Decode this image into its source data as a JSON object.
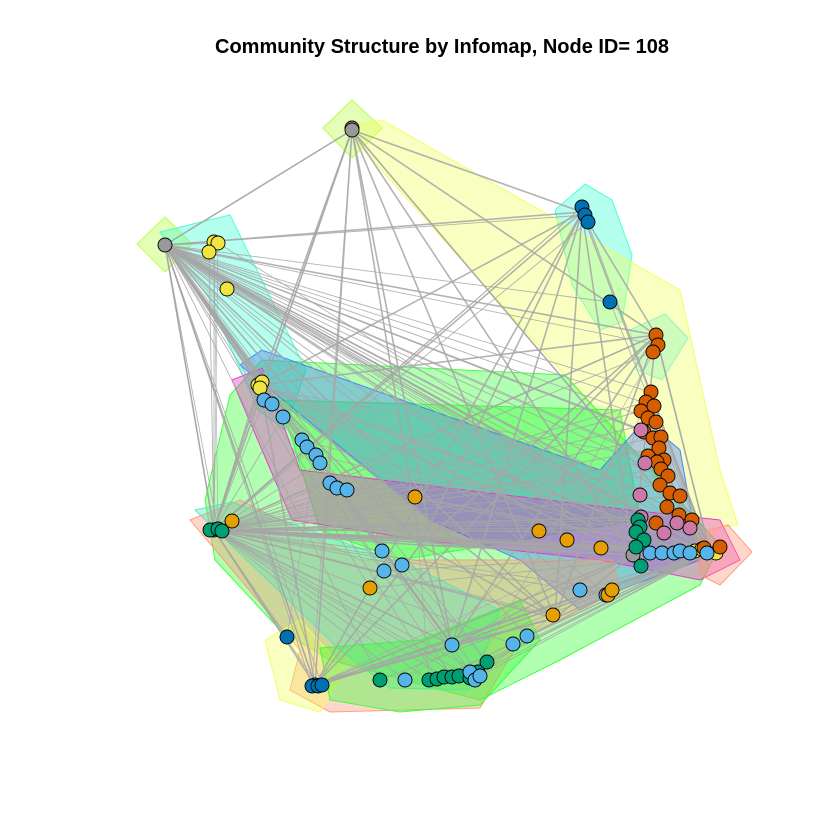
{
  "title": "Community Structure by Infomap, Node ID= 108",
  "palette": {
    "edge": "#a6a6a6",
    "node_stroke": "#000000",
    "node_colors": {
      "orange_red": "#d55e00",
      "sky_blue": "#56b4e9",
      "blue": "#0072b2",
      "green": "#009e73",
      "yellow": "#f0e442",
      "orange": "#e69f00",
      "pink": "#cc79a7",
      "gray": "#999999"
    },
    "community_fills": {
      "lime": "#b4ff3c",
      "aqua": "#3cffd2",
      "yellow": "#f0ff5a",
      "green": "#32ff32",
      "blue": "#3c78ff",
      "magenta": "#e632c8",
      "salmon": "#ff9673",
      "teal": "#5ae1be",
      "cyan": "#50f0f0"
    }
  }
}
